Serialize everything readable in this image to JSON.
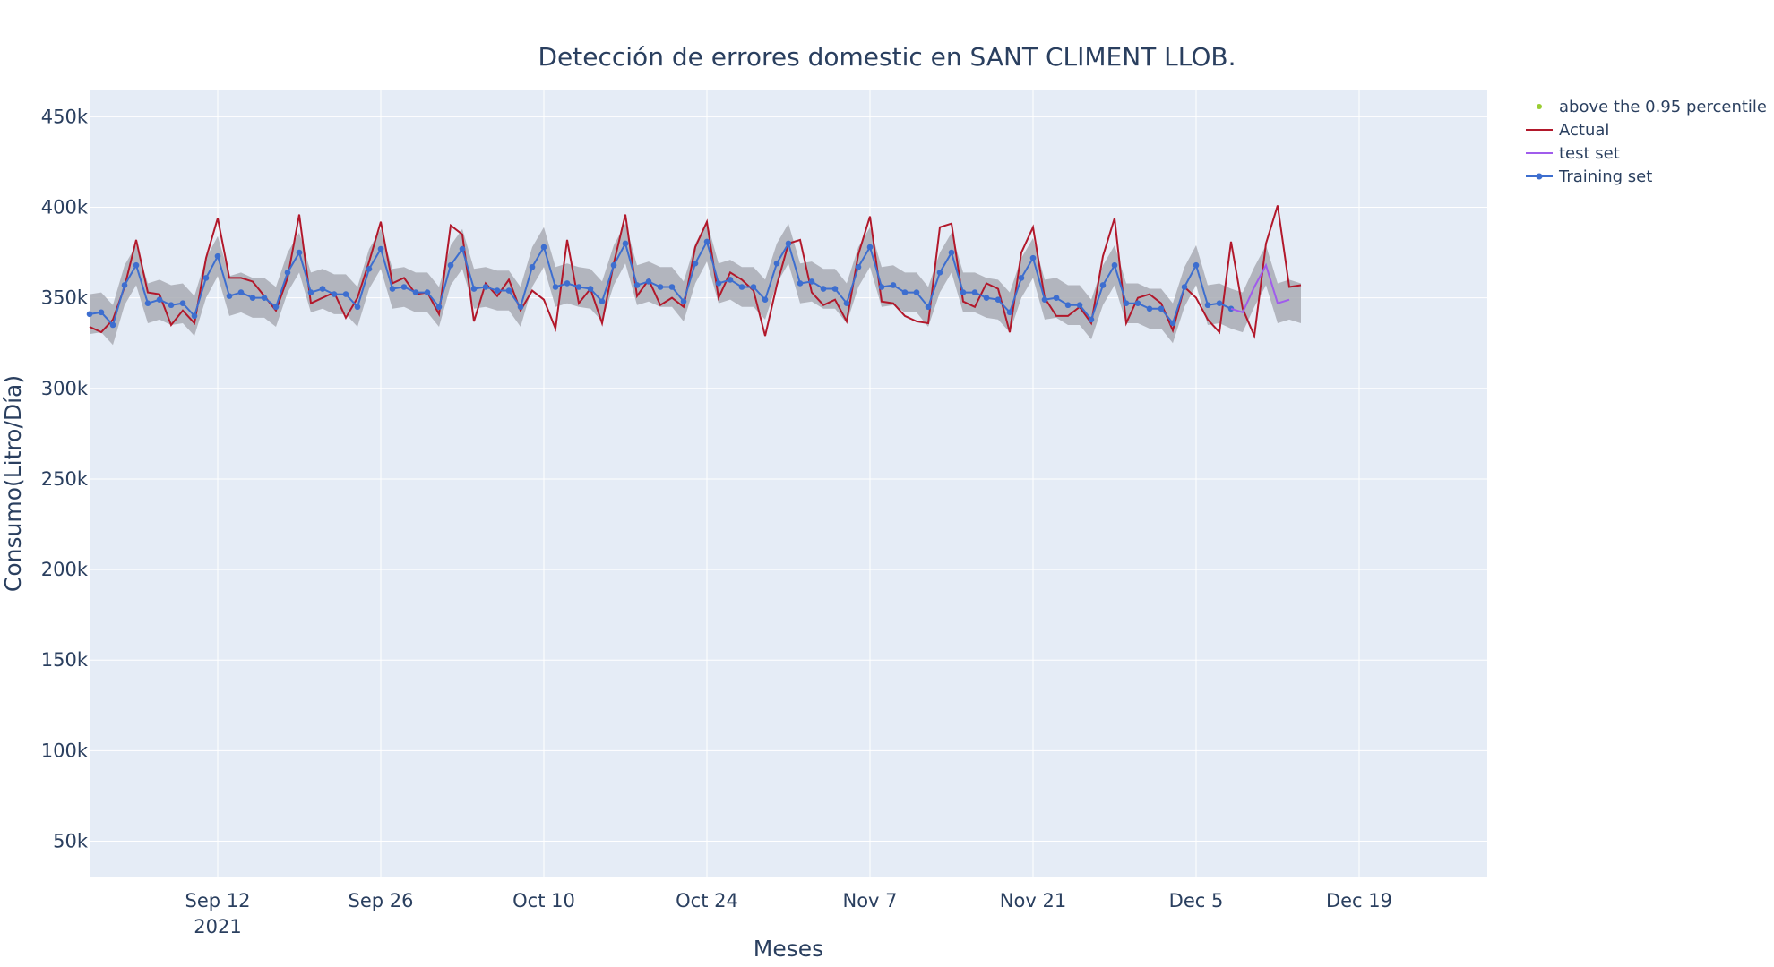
{
  "chart_data": {
    "type": "line",
    "title": "Detección de errores domestic en SANT CLIMENT LLOB.",
    "xlabel": "Meses",
    "ylabel": "Consumo(Litro/Día)",
    "xlim": [
      "2021-09-01",
      "2021-12-30"
    ],
    "ylim": [
      30000,
      465000
    ],
    "x_ticks": [
      {
        "date": "2021-09-12",
        "label": "Sep 12",
        "sub": "2021"
      },
      {
        "date": "2021-09-26",
        "label": "Sep 26",
        "sub": ""
      },
      {
        "date": "2021-10-10",
        "label": "Oct 10",
        "sub": ""
      },
      {
        "date": "2021-10-24",
        "label": "Oct 24",
        "sub": ""
      },
      {
        "date": "2021-11-07",
        "label": "Nov 7",
        "sub": ""
      },
      {
        "date": "2021-11-21",
        "label": "Nov 21",
        "sub": ""
      },
      {
        "date": "2021-12-05",
        "label": "Dec 5",
        "sub": ""
      },
      {
        "date": "2021-12-19",
        "label": "Dec 19",
        "sub": ""
      }
    ],
    "y_ticks": [
      {
        "value": 50000,
        "label": "50k"
      },
      {
        "value": 100000,
        "label": "100k"
      },
      {
        "value": 150000,
        "label": "150k"
      },
      {
        "value": 200000,
        "label": "200k"
      },
      {
        "value": 250000,
        "label": "250k"
      },
      {
        "value": 300000,
        "label": "300k"
      },
      {
        "value": 350000,
        "label": "350k"
      },
      {
        "value": 400000,
        "label": "400k"
      },
      {
        "value": 450000,
        "label": "450k"
      }
    ],
    "legend_position": "top-right, outside plot",
    "gridlines": true,
    "colors": {
      "plot_bg": "#e5ecf6",
      "grid": "#ffffff",
      "actual": "#b2182b",
      "training": "#3d6ecf",
      "test": "#a05cec",
      "percentile": "#9acd32",
      "band": "#a9acb4",
      "text": "#2a3f5f"
    },
    "legend": [
      {
        "name": "above the 0.95 percentile",
        "style": "dot",
        "color": "#9acd32"
      },
      {
        "name": "Actual",
        "style": "line",
        "color": "#b2182b"
      },
      {
        "name": "test set",
        "style": "line",
        "color": "#a05cec"
      },
      {
        "name": "Training set",
        "style": "line-marker",
        "color": "#3d6ecf"
      }
    ],
    "series": [
      {
        "name": "Actual",
        "start_date": "2021-09-01",
        "values": [
          334000,
          331000,
          338000,
          356000,
          382000,
          353000,
          352000,
          335000,
          343000,
          336000,
          372000,
          394000,
          361000,
          361000,
          359000,
          351000,
          343000,
          361000,
          396000,
          347000,
          350000,
          353000,
          339000,
          350000,
          370000,
          392000,
          358000,
          361000,
          352000,
          353000,
          341000,
          390000,
          385000,
          337000,
          358000,
          351000,
          360000,
          343000,
          354000,
          349000,
          333000,
          382000,
          347000,
          355000,
          336000,
          369000,
          396000,
          351000,
          360000,
          346000,
          350000,
          345000,
          378000,
          392000,
          350000,
          364000,
          360000,
          354000,
          329000,
          357000,
          380000,
          382000,
          353000,
          346000,
          349000,
          337000,
          374000,
          395000,
          348000,
          347000,
          340000,
          337000,
          336000,
          389000,
          391000,
          348000,
          345000,
          358000,
          355000,
          331000,
          375000,
          389000,
          350000,
          340000,
          340000,
          345000,
          336000,
          373000,
          394000,
          336000,
          350000,
          352000,
          347000,
          332000,
          356000,
          350000,
          338000,
          331000,
          381000,
          344000,
          329000,
          380000,
          401000,
          356000,
          357000
        ]
      },
      {
        "name": "Training set",
        "start_date": "2021-09-01",
        "values": [
          341000,
          342000,
          335000,
          357000,
          368000,
          347000,
          349000,
          346000,
          347000,
          340000,
          361000,
          373000,
          351000,
          353000,
          350000,
          350000,
          345000,
          364000,
          375000,
          353000,
          355000,
          352000,
          352000,
          345000,
          366000,
          377000,
          355000,
          356000,
          353000,
          353000,
          345000,
          368000,
          377000,
          355000,
          356000,
          354000,
          354000,
          345000,
          367000,
          378000,
          356000,
          358000,
          356000,
          355000,
          348000,
          368000,
          380000,
          357000,
          359000,
          356000,
          356000,
          348000,
          369000,
          381000,
          358000,
          360000,
          356000,
          356000,
          349000,
          369000,
          380000,
          358000,
          359000,
          355000,
          355000,
          347000,
          367000,
          378000,
          356000,
          357000,
          353000,
          353000,
          345000,
          364000,
          375000,
          353000,
          353000,
          350000,
          349000,
          342000,
          361000,
          372000,
          349000,
          350000,
          346000,
          346000,
          338000,
          357000,
          368000,
          347000,
          347000,
          344000,
          344000,
          336000,
          356000,
          368000,
          346000,
          347000,
          344000
        ]
      },
      {
        "name": "test set",
        "start_date": "2021-12-08",
        "values": [
          344000,
          342000,
          356000,
          368000,
          347000,
          349000
        ]
      }
    ],
    "confidence_band": {
      "start_date": "2021-09-01",
      "end_date": "2021-12-14",
      "half_width": 11000
    }
  }
}
